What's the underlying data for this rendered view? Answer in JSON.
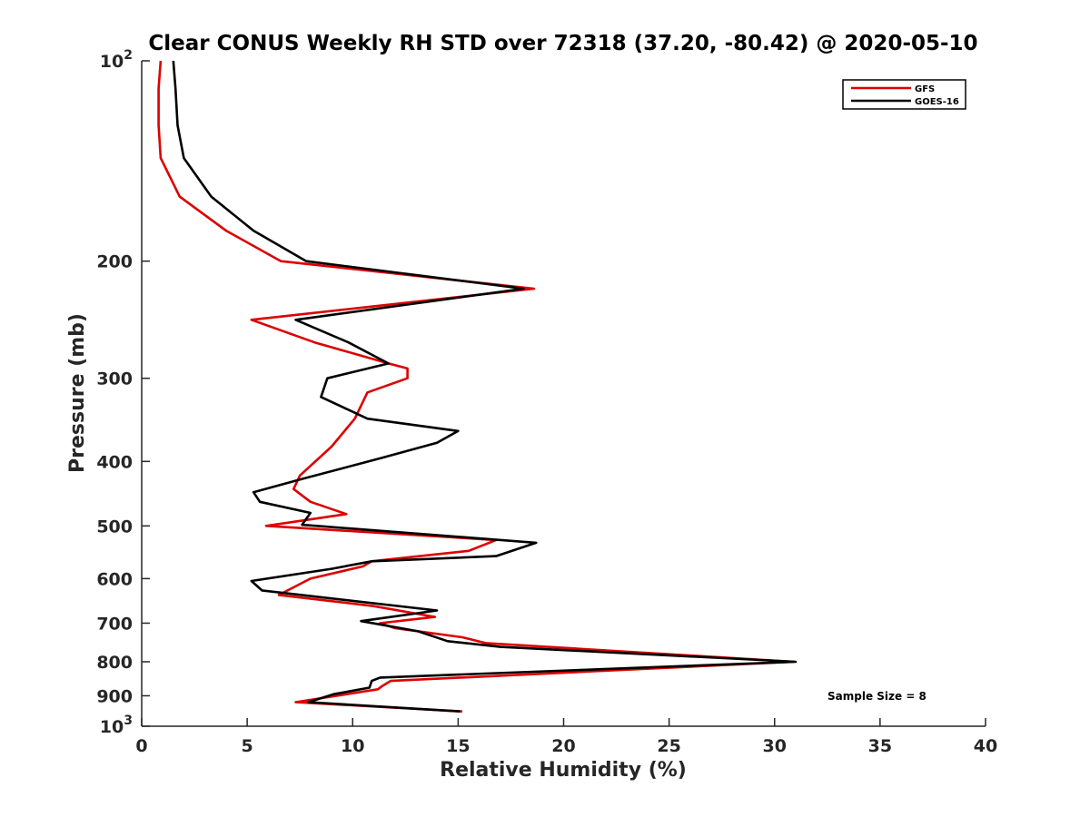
{
  "chart_data": {
    "type": "line",
    "title": "Clear CONUS Weekly RH STD over 72318 (37.20, -80.42) @ 2020-05-10",
    "xlabel": "Relative Humidity (%)",
    "ylabel": "Pressure (mb)",
    "xlim": [
      0,
      40
    ],
    "ylim": [
      100,
      1000
    ],
    "y_scale": "log",
    "y_reversed": true,
    "xticks": [
      0,
      5,
      10,
      15,
      20,
      25,
      30,
      35,
      40
    ],
    "yticks": [
      {
        "value": 100,
        "label": "10",
        "sup": "2"
      },
      {
        "value": 200,
        "label": "200",
        "sup": ""
      },
      {
        "value": 300,
        "label": "300",
        "sup": ""
      },
      {
        "value": 400,
        "label": "400",
        "sup": ""
      },
      {
        "value": 500,
        "label": "500",
        "sup": ""
      },
      {
        "value": 600,
        "label": "600",
        "sup": ""
      },
      {
        "value": 700,
        "label": "700",
        "sup": ""
      },
      {
        "value": 800,
        "label": "800",
        "sup": ""
      },
      {
        "value": 900,
        "label": "900",
        "sup": ""
      },
      {
        "value": 1000,
        "label": "10",
        "sup": "3"
      }
    ],
    "grid": false,
    "legend_position": "top-right",
    "annotation": "Sample Size = 8",
    "series": [
      {
        "name": "GFS",
        "color": "#dd0000",
        "points": [
          [
            0.9,
            100
          ],
          [
            0.8,
            110
          ],
          [
            0.8,
            125
          ],
          [
            0.9,
            140
          ],
          [
            1.8,
            160
          ],
          [
            4.0,
            180
          ],
          [
            6.6,
            200
          ],
          [
            18.6,
            220
          ],
          [
            5.2,
            245
          ],
          [
            8.2,
            265
          ],
          [
            11.7,
            285
          ],
          [
            12.6,
            290
          ],
          [
            12.6,
            300
          ],
          [
            10.7,
            315
          ],
          [
            10.1,
            345
          ],
          [
            9.0,
            380
          ],
          [
            7.5,
            420
          ],
          [
            7.2,
            440
          ],
          [
            8.0,
            460
          ],
          [
            9.7,
            480
          ],
          [
            5.9,
            500
          ],
          [
            16.8,
            525
          ],
          [
            15.5,
            545
          ],
          [
            10.9,
            565
          ],
          [
            10.5,
            575
          ],
          [
            8.0,
            600
          ],
          [
            6.5,
            635
          ],
          [
            11.0,
            660
          ],
          [
            13.9,
            685
          ],
          [
            11.3,
            700
          ],
          [
            12.0,
            712
          ],
          [
            15.2,
            735
          ],
          [
            16.3,
            750
          ],
          [
            30.9,
            800
          ],
          [
            11.8,
            855
          ],
          [
            11.4,
            870
          ],
          [
            11.2,
            880
          ],
          [
            7.3,
            920
          ],
          [
            15.2,
            950
          ]
        ]
      },
      {
        "name": "GOES-16",
        "color": "#000000",
        "points": [
          [
            1.5,
            100
          ],
          [
            1.6,
            110
          ],
          [
            1.7,
            125
          ],
          [
            2.0,
            140
          ],
          [
            3.3,
            160
          ],
          [
            5.3,
            180
          ],
          [
            7.8,
            200
          ],
          [
            18.1,
            220
          ],
          [
            7.3,
            245
          ],
          [
            9.8,
            265
          ],
          [
            11.7,
            285
          ],
          [
            8.8,
            300
          ],
          [
            8.5,
            320
          ],
          [
            10.7,
            345
          ],
          [
            15.0,
            360
          ],
          [
            14.0,
            375
          ],
          [
            11.4,
            395
          ],
          [
            7.6,
            425
          ],
          [
            5.3,
            445
          ],
          [
            5.6,
            460
          ],
          [
            8.0,
            478
          ],
          [
            7.6,
            498
          ],
          [
            18.7,
            530
          ],
          [
            16.8,
            555
          ],
          [
            10.9,
            565
          ],
          [
            9.0,
            580
          ],
          [
            5.2,
            605
          ],
          [
            5.7,
            625
          ],
          [
            14.0,
            670
          ],
          [
            10.4,
            695
          ],
          [
            13.1,
            720
          ],
          [
            14.5,
            745
          ],
          [
            17.0,
            760
          ],
          [
            31.0,
            800
          ],
          [
            11.3,
            845
          ],
          [
            10.9,
            855
          ],
          [
            10.8,
            875
          ],
          [
            9.1,
            895
          ],
          [
            7.9,
            920
          ],
          [
            15.1,
            950
          ]
        ]
      }
    ]
  }
}
